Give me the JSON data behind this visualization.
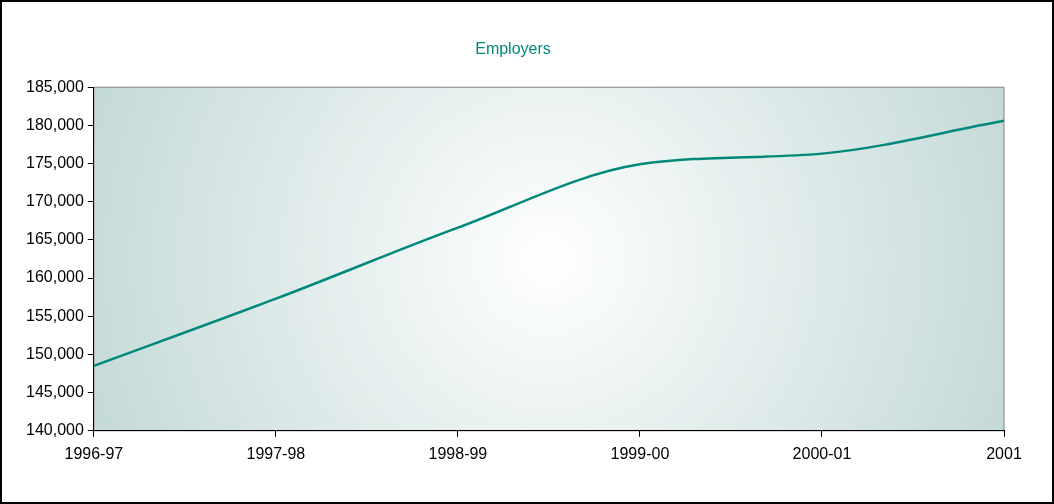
{
  "chart_data": {
    "type": "line",
    "title": "Employers",
    "categories": [
      "1996-97",
      "1997-98",
      "1998-99",
      "1999-00",
      "2000-01",
      "2001"
    ],
    "series": [
      {
        "color": "#00897b",
        "values": [
          148500,
          157300,
          166600,
          174900,
          176300,
          180600
        ]
      }
    ],
    "ylim": [
      140000,
      185000
    ],
    "yticks": [
      {
        "value": 140000,
        "label": "140,000"
      },
      {
        "value": 145000,
        "label": "145,000"
      },
      {
        "value": 150000,
        "label": "150,000"
      },
      {
        "value": 155000,
        "label": "155,000"
      },
      {
        "value": 160000,
        "label": "160,000"
      },
      {
        "value": 165000,
        "label": "165,000"
      },
      {
        "value": 170000,
        "label": "170,000"
      },
      {
        "value": 175000,
        "label": "175,000"
      },
      {
        "value": 180000,
        "label": "180,000"
      },
      {
        "value": 185000,
        "label": "185,000"
      }
    ],
    "grid": false,
    "legend": false,
    "marker": "none",
    "line_style": "solid"
  }
}
